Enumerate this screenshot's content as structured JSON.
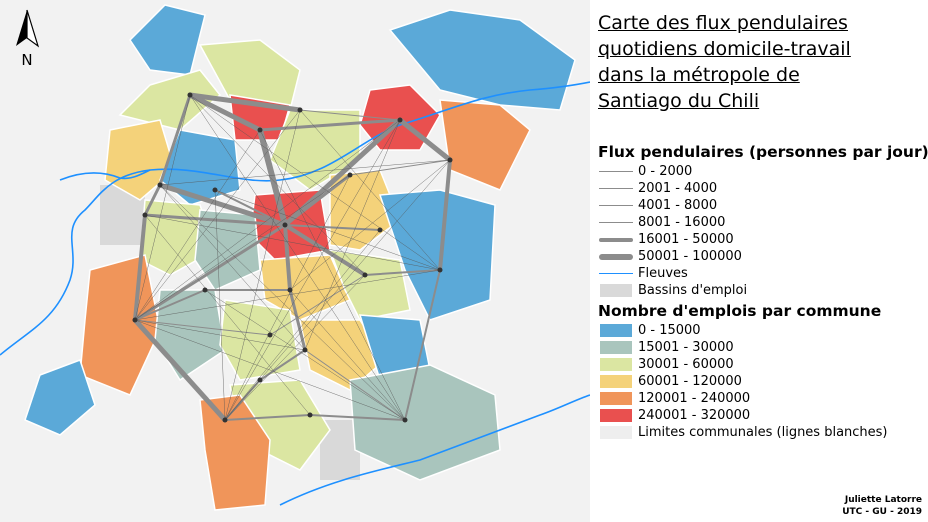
{
  "title": "Carte des flux pendulaires\nquotidiens domicile-travail\ndans la métropole de\nSantiago du Chili",
  "north_label": "N",
  "legend": {
    "flux_title": "Flux pendulaires (personnes par jour)",
    "flux_classes": [
      {
        "label": "0 - 2000",
        "weight": 0
      },
      {
        "label": "2001 - 4000",
        "weight": 1
      },
      {
        "label": "4001 - 8000",
        "weight": 2
      },
      {
        "label": "8001 - 16000",
        "weight": 3
      },
      {
        "label": "16001 - 50000",
        "weight": 4
      },
      {
        "label": "50001 - 100000",
        "weight": 5
      }
    ],
    "river_label": "Fleuves",
    "river_color": "#1e90ff",
    "bassins_label": "Bassins d'emploi",
    "bassins_color": "#d9d9d9",
    "emplois_title": "Nombre d'emplois par commune",
    "emploi_classes": [
      {
        "label": "0 - 15000",
        "color": "#5ba9d8"
      },
      {
        "label": "15001 - 30000",
        "color": "#a9c5bd"
      },
      {
        "label": "30001 - 60000",
        "color": "#dbe6a2"
      },
      {
        "label": "60001 - 120000",
        "color": "#f4d27a"
      },
      {
        "label": "120001 - 240000",
        "color": "#f0955a"
      },
      {
        "label": "240001 - 320000",
        "color": "#e9504f"
      }
    ],
    "limits_label": "Limites communales (lignes blanches)",
    "limits_color": "#eeeeee"
  },
  "credit": {
    "author": "Juliette Latorre",
    "org": "UTC - GU - 2019"
  }
}
